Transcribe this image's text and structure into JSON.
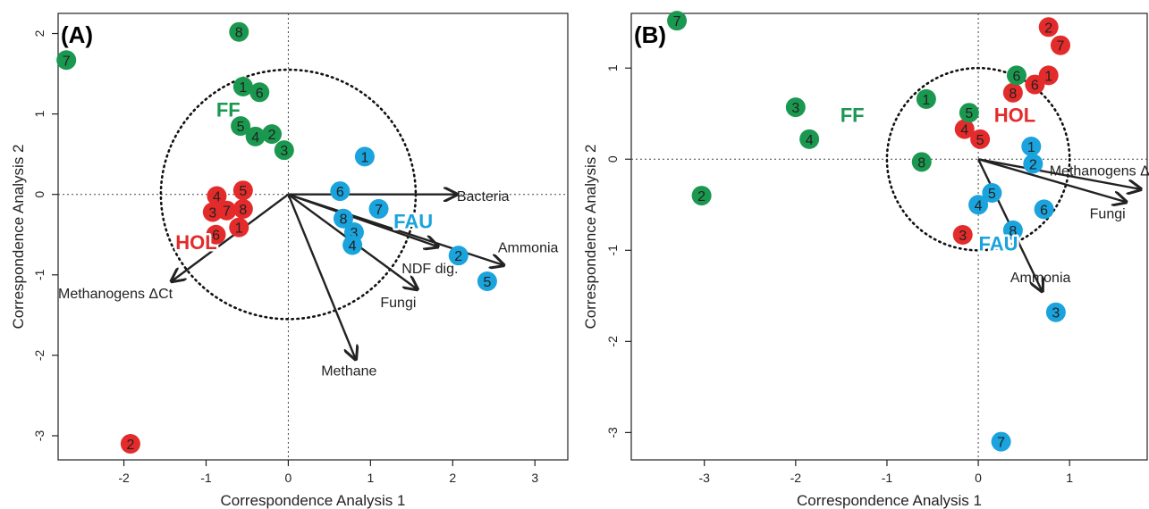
{
  "colors": {
    "HOL": "#e32b2b",
    "FF": "#1a9850",
    "FAU": "#1aa3dc",
    "arrow": "#222222",
    "axis": "#222222"
  },
  "chart_data": [
    {
      "type": "scatter",
      "panel_label": "(A)",
      "xlabel": "Correspondence Analysis 1",
      "ylabel": "Correspondence Analysis 2",
      "xlim": [
        -2.8,
        3.4
      ],
      "ylim": [
        -3.3,
        2.25
      ],
      "xticks": [
        -2,
        -1,
        0,
        1,
        2,
        3
      ],
      "yticks": [
        -3,
        -2,
        -1,
        0,
        1,
        2
      ],
      "circle_radius": 1.55,
      "series": [
        {
          "name": "HOL",
          "color_key": "HOL",
          "label_pos": [
            -1.12,
            -0.68
          ],
          "points": [
            {
              "label": "4",
              "x": -0.87,
              "y": -0.02
            },
            {
              "label": "5",
              "x": -0.55,
              "y": 0.05
            },
            {
              "label": "3",
              "x": -0.92,
              "y": -0.22
            },
            {
              "label": "7",
              "x": -0.75,
              "y": -0.2
            },
            {
              "label": "8",
              "x": -0.55,
              "y": -0.18
            },
            {
              "label": "6",
              "x": -0.88,
              "y": -0.5
            },
            {
              "label": "1",
              "x": -0.6,
              "y": -0.41
            },
            {
              "label": "2",
              "x": -1.92,
              "y": -3.1
            }
          ]
        },
        {
          "name": "FF",
          "color_key": "FF",
          "label_pos": [
            -0.73,
            0.97
          ],
          "points": [
            {
              "label": "8",
              "x": -0.6,
              "y": 2.02
            },
            {
              "label": "7",
              "x": -2.7,
              "y": 1.67
            },
            {
              "label": "1",
              "x": -0.55,
              "y": 1.34
            },
            {
              "label": "6",
              "x": -0.35,
              "y": 1.27
            },
            {
              "label": "5",
              "x": -0.58,
              "y": 0.85
            },
            {
              "label": "4",
              "x": -0.4,
              "y": 0.72
            },
            {
              "label": "2",
              "x": -0.2,
              "y": 0.75
            },
            {
              "label": "3",
              "x": -0.05,
              "y": 0.55
            }
          ]
        },
        {
          "name": "FAU",
          "color_key": "FAU",
          "label_pos": [
            1.52,
            -0.42
          ],
          "points": [
            {
              "label": "1",
              "x": 0.93,
              "y": 0.47
            },
            {
              "label": "6",
              "x": 0.63,
              "y": 0.04
            },
            {
              "label": "7",
              "x": 1.1,
              "y": -0.18
            },
            {
              "label": "8",
              "x": 0.67,
              "y": -0.3
            },
            {
              "label": "3",
              "x": 0.8,
              "y": -0.47
            },
            {
              "label": "4",
              "x": 0.78,
              "y": -0.63
            },
            {
              "label": "2",
              "x": 2.07,
              "y": -0.76
            },
            {
              "label": "5",
              "x": 2.42,
              "y": -1.08
            }
          ]
        }
      ],
      "arrows": [
        {
          "label": "Bacteria",
          "x": 2.05,
          "y": 0.0,
          "label_x": 2.05,
          "label_y": -0.08,
          "anchor": "start"
        },
        {
          "label": "Ammonia",
          "x": 2.62,
          "y": -0.88,
          "label_x": 2.55,
          "label_y": -0.72,
          "anchor": "start"
        },
        {
          "label": "NDF dig.",
          "x": 1.82,
          "y": -0.65,
          "label_x": 1.38,
          "label_y": -0.98,
          "anchor": "start"
        },
        {
          "label": "Fungi",
          "x": 1.57,
          "y": -1.18,
          "label_x": 1.12,
          "label_y": -1.4,
          "anchor": "start"
        },
        {
          "label": "Methane",
          "x": 0.82,
          "y": -2.05,
          "label_x": 0.4,
          "label_y": -2.25,
          "anchor": "start"
        },
        {
          "label": "Methanogens ΔCt",
          "x": -1.42,
          "y": -1.08,
          "label_x": -2.8,
          "label_y": -1.29,
          "anchor": "start"
        }
      ]
    },
    {
      "type": "scatter",
      "panel_label": "(B)",
      "xlabel": "Correspondence Analysis 1",
      "ylabel": "Correspondence Analysis 2",
      "xlim": [
        -3.8,
        1.85
      ],
      "ylim": [
        -3.3,
        1.6
      ],
      "xticks": [
        -3,
        -2,
        -1,
        0,
        1
      ],
      "yticks": [
        -3,
        -2,
        -1,
        0,
        1
      ],
      "circle_radius": 1.0,
      "series": [
        {
          "name": "HOL",
          "color_key": "HOL",
          "label_pos": [
            0.4,
            0.41
          ],
          "points": [
            {
              "label": "2",
              "x": 0.77,
              "y": 1.45
            },
            {
              "label": "7",
              "x": 0.9,
              "y": 1.25
            },
            {
              "label": "1",
              "x": 0.77,
              "y": 0.92
            },
            {
              "label": "6",
              "x": 0.62,
              "y": 0.82
            },
            {
              "label": "8",
              "x": 0.38,
              "y": 0.73
            },
            {
              "label": "4",
              "x": -0.15,
              "y": 0.33
            },
            {
              "label": "5",
              "x": 0.02,
              "y": 0.22
            },
            {
              "label": "3",
              "x": -0.17,
              "y": -0.83
            }
          ]
        },
        {
          "name": "FF",
          "color_key": "FF",
          "label_pos": [
            -1.38,
            0.41
          ],
          "points": [
            {
              "label": "7",
              "x": -3.3,
              "y": 1.52
            },
            {
              "label": "6",
              "x": 0.42,
              "y": 0.92
            },
            {
              "label": "1",
              "x": -0.57,
              "y": 0.66
            },
            {
              "label": "5",
              "x": -0.1,
              "y": 0.51
            },
            {
              "label": "3",
              "x": -2.0,
              "y": 0.57
            },
            {
              "label": "4",
              "x": -1.85,
              "y": 0.22
            },
            {
              "label": "8",
              "x": -0.62,
              "y": -0.03
            },
            {
              "label": "2",
              "x": -3.03,
              "y": -0.4
            }
          ]
        },
        {
          "name": "FAU",
          "color_key": "FAU",
          "label_pos": [
            0.22,
            -1.0
          ],
          "points": [
            {
              "label": "1",
              "x": 0.58,
              "y": 0.14
            },
            {
              "label": "2",
              "x": 0.6,
              "y": -0.05
            },
            {
              "label": "5",
              "x": 0.15,
              "y": -0.37
            },
            {
              "label": "4",
              "x": 0.0,
              "y": -0.5
            },
            {
              "label": "6",
              "x": 0.72,
              "y": -0.55
            },
            {
              "label": "8",
              "x": 0.38,
              "y": -0.78
            },
            {
              "label": "3",
              "x": 0.85,
              "y": -1.68
            },
            {
              "label": "7",
              "x": 0.25,
              "y": -3.1
            }
          ]
        }
      ],
      "arrows": [
        {
          "label": "Methanogens ΔCt",
          "x": 1.78,
          "y": -0.33,
          "label_x": 0.78,
          "label_y": -0.18,
          "anchor": "start"
        },
        {
          "label": "Fungi",
          "x": 1.62,
          "y": -0.47,
          "label_x": 1.22,
          "label_y": -0.65,
          "anchor": "start"
        },
        {
          "label": "Ammonia",
          "x": 0.7,
          "y": -1.45,
          "label_x": 0.35,
          "label_y": -1.35,
          "anchor": "start"
        }
      ]
    }
  ]
}
